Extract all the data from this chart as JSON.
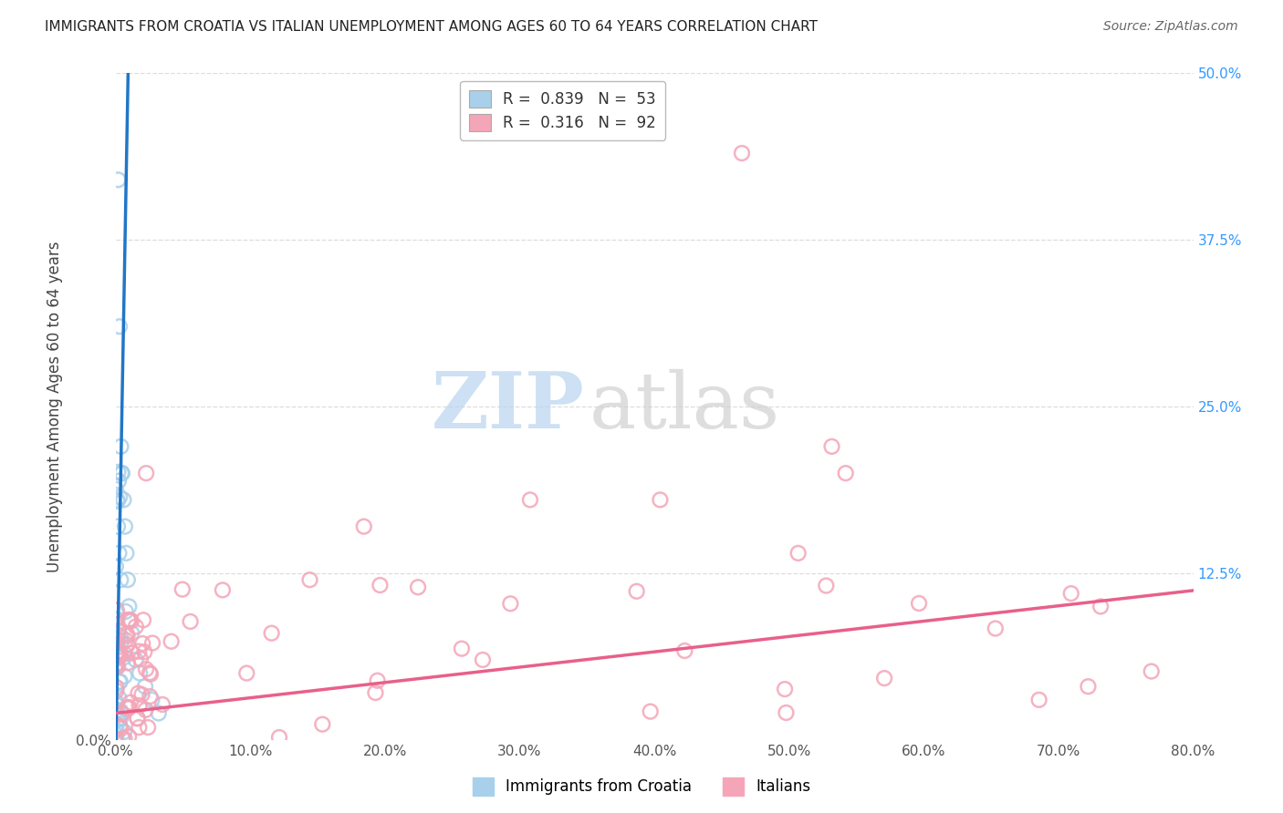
{
  "title": "IMMIGRANTS FROM CROATIA VS ITALIAN UNEMPLOYMENT AMONG AGES 60 TO 64 YEARS CORRELATION CHART",
  "source": "Source: ZipAtlas.com",
  "ylabel": "Unemployment Among Ages 60 to 64 years",
  "legend_label1": "Immigrants from Croatia",
  "legend_label2": "Italians",
  "r1": 0.839,
  "n1": 53,
  "r2": 0.316,
  "n2": 92,
  "color1": "#a8d0ea",
  "color2": "#f4a6b8",
  "line_color1": "#2176c7",
  "line_color2": "#e8608a",
  "xmin": 0.0,
  "xmax": 0.8,
  "ymin": 0.0,
  "ymax": 0.5,
  "yticks_right": [
    0.125,
    0.25,
    0.375,
    0.5
  ],
  "ytick_labels_right": [
    "12.5%",
    "25.0%",
    "37.5%",
    "50.0%"
  ],
  "xtick_vals": [
    0.0,
    0.1,
    0.2,
    0.3,
    0.4,
    0.5,
    0.6,
    0.7,
    0.8
  ],
  "xtick_labels": [
    "0.0%",
    "10.0%",
    "20.0%",
    "30.0%",
    "40.0%",
    "50.0%",
    "60.0%",
    "70.0%",
    "80.0%"
  ],
  "watermark_zip": "ZIP",
  "watermark_atlas": "atlas",
  "background_color": "#ffffff",
  "grid_color": "#dddddd",
  "right_tick_color": "#3399ff"
}
